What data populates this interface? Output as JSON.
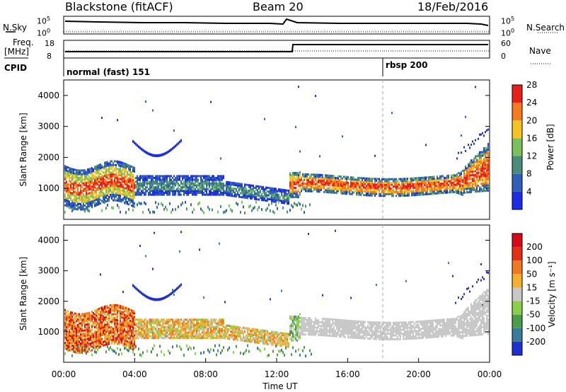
{
  "header": {
    "station": "Blackstone (fitACF)",
    "beam": "Beam 20",
    "date": "18/Feb/2016"
  },
  "panels": {
    "nsky_label": "N.Sky",
    "nsky_tick_top": "10^5",
    "nsky_tick_bottom": "10^0",
    "nsearch_label": "N.Search",
    "nsearch_tick_top": "10^5",
    "nsearch_tick_bottom": "10^0",
    "freq_label": "Freq.",
    "freq_unit": "[MHz]",
    "freq_tick_top": "18",
    "freq_tick_bottom": "8",
    "nave_label": "Nave",
    "nave_tick_top": "60",
    "nave_tick_bottom": "0",
    "cpid_label": "CPID",
    "cpid_mode_1": "normal (fast) 151",
    "cpid_mode_2": "rbsp 200"
  },
  "chart_data": [
    {
      "type": "heatmap",
      "title": "",
      "xlabel": "",
      "ylabel": "Slant Range [km]",
      "x_range": [
        "00:00",
        "24:00"
      ],
      "ylim": [
        0,
        4500
      ],
      "yticks": [
        "1000",
        "2000",
        "3000",
        "4000"
      ],
      "colorbar": {
        "label": "Power [dB]",
        "ticks": [
          "4",
          "8",
          "12",
          "16",
          "20",
          "24",
          "28"
        ],
        "colors": [
          "#1e2ce8",
          "#2f5fb8",
          "#4a8c7a",
          "#7bc05e",
          "#f4c522",
          "#f47b1e",
          "#e8201c"
        ]
      }
    },
    {
      "type": "heatmap",
      "title": "",
      "xlabel": "Time UT",
      "ylabel": "Slant Range [km]",
      "x_range": [
        "00:00",
        "24:00"
      ],
      "xticks": [
        "00:00",
        "04:00",
        "08:00",
        "12:00",
        "16:00",
        "20:00",
        "00:00"
      ],
      "ylim": [
        0,
        4500
      ],
      "yticks": [
        "1000",
        "2000",
        "3000",
        "4000"
      ],
      "colorbar": {
        "label": "Velocity [m s⁻¹]",
        "ticks": [
          "200",
          "100",
          "50",
          "15",
          "-15",
          "-50",
          "-100",
          "-200"
        ],
        "colors": [
          "#2030d0",
          "#3a7a9a",
          "#4c9c4c",
          "#8ad04a",
          "#c8c8c8",
          "#f4b030",
          "#f07820",
          "#e03018",
          "#d80818"
        ]
      }
    }
  ]
}
